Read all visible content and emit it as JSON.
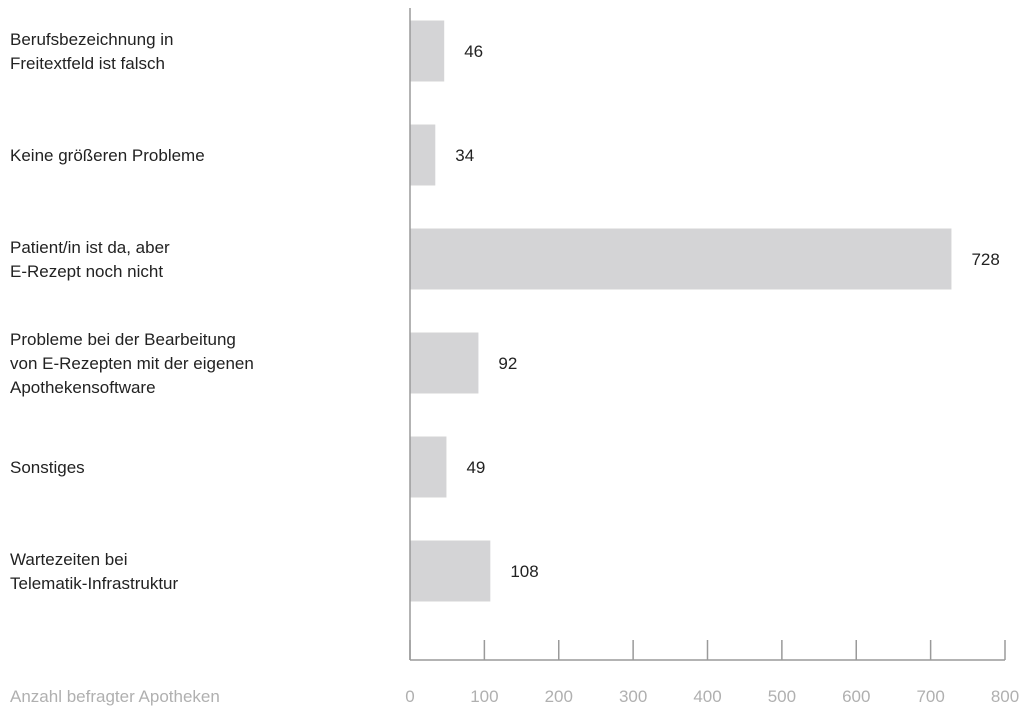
{
  "chart_data": {
    "type": "bar",
    "orientation": "horizontal",
    "categories": [
      [
        "Berufsbezeichnung in",
        "Freitextfeld ist falsch"
      ],
      [
        "Keine größeren Probleme"
      ],
      [
        "Patient/in ist da, aber",
        "E-Rezept noch nicht"
      ],
      [
        "Probleme bei der Bearbeitung",
        "von E-Rezepten mit der eigenen",
        "Apothekensoftware"
      ],
      [
        "Sonstiges"
      ],
      [
        "Wartezeiten bei",
        "Telematik-Infrastruktur"
      ]
    ],
    "values": [
      46,
      34,
      728,
      92,
      49,
      108
    ],
    "xlabel": "Anzahl befragter Apotheken",
    "xlim": [
      0,
      800
    ],
    "xticks": [
      0,
      100,
      200,
      300,
      400,
      500,
      600,
      700,
      800
    ],
    "grid": false,
    "colors": {
      "bar": "#d4d4d6",
      "axis": "#9a9a9a",
      "text": "#222222",
      "muted": "#b0b0b0"
    }
  }
}
